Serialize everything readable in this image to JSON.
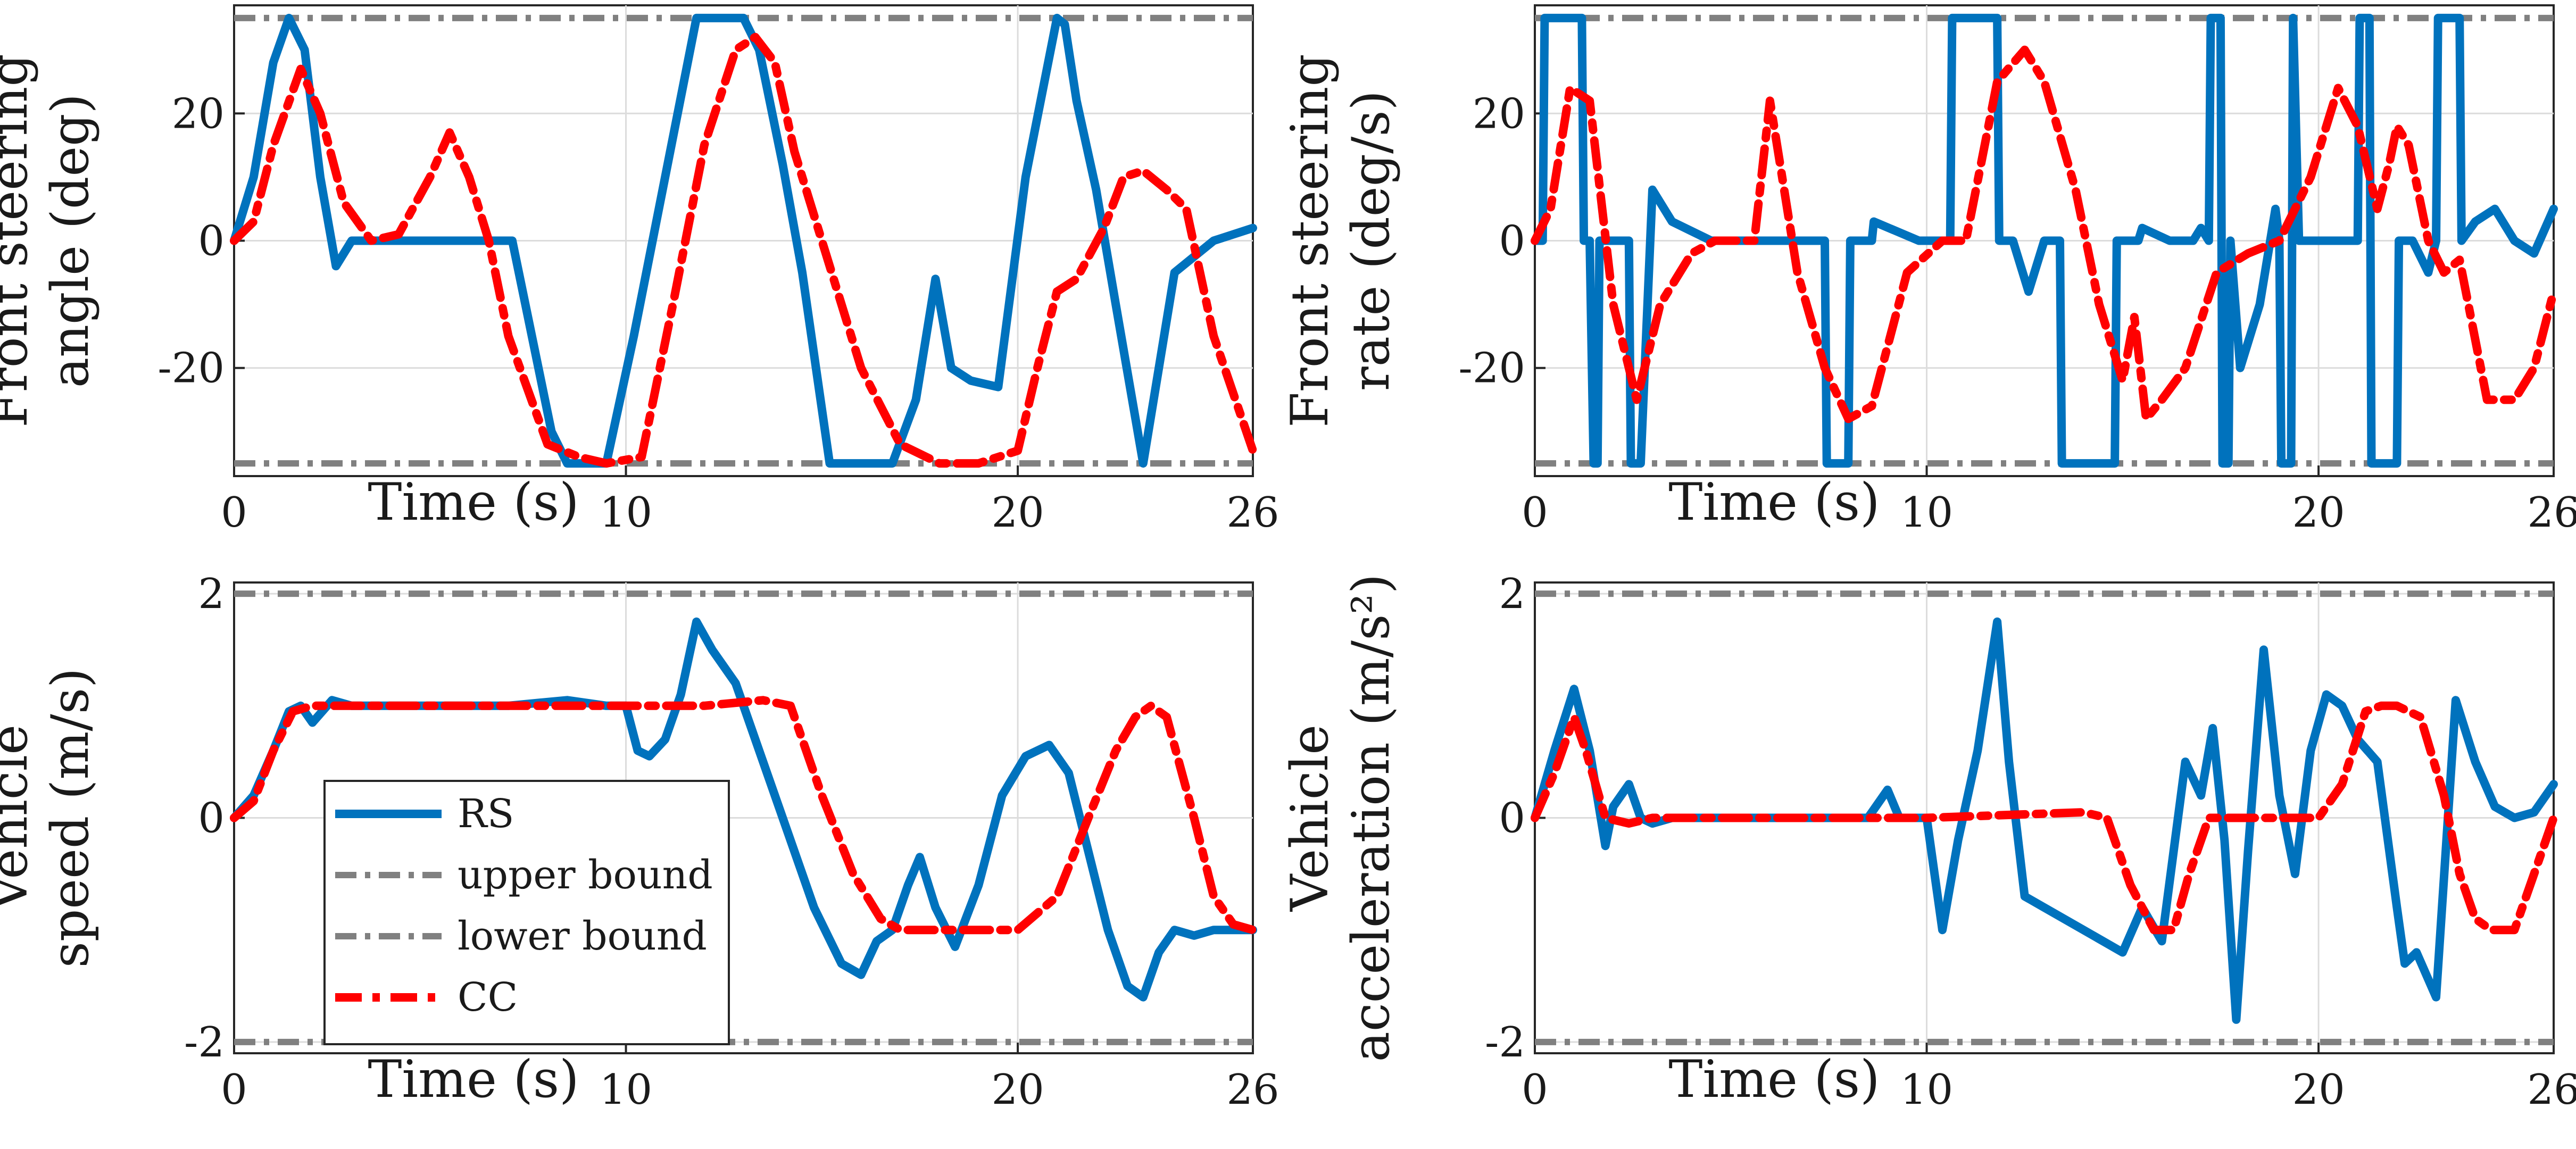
{
  "chart_data": [
    {
      "type": "line",
      "id": "steer-angle",
      "ylabel_lines": [
        "Front steering",
        "angle (deg)"
      ],
      "xlabel": "Time (s)",
      "xlim": [
        0,
        26
      ],
      "ylim": [
        -37,
        37
      ],
      "xticks": [
        0,
        10,
        20,
        26
      ],
      "yticks": [
        -20,
        0,
        20
      ],
      "yticklabels": [
        "-20",
        "0",
        "20"
      ],
      "bounds": {
        "upper": 35,
        "lower": -35
      },
      "series": [
        {
          "name": "RS",
          "x": [
            0,
            0.5,
            1.0,
            1.4,
            1.8,
            2.2,
            2.6,
            3.0,
            4,
            5,
            6,
            7.1,
            7.5,
            8.1,
            8.5,
            9.5,
            10.2,
            11.0,
            11.8,
            12.2,
            13.0,
            13.4,
            14.0,
            14.5,
            15.2,
            16.0,
            16.8,
            17.4,
            17.9,
            18.3,
            18.8,
            19.5,
            20.2,
            21.0,
            21.2,
            21.5,
            22.0,
            22.5,
            23.2,
            24.0,
            25.0,
            26
          ],
          "values": [
            0,
            10,
            28,
            35,
            30,
            10,
            -4,
            0,
            0,
            0,
            0,
            0,
            -12,
            -30,
            -35,
            -35,
            -15,
            10,
            35,
            35,
            35,
            30,
            12,
            -5,
            -35,
            -35,
            -35,
            -25,
            -6,
            -20,
            -22,
            -23,
            10,
            35,
            34,
            22,
            8,
            -10,
            -35,
            -5,
            0,
            2
          ]
        },
        {
          "name": "CC",
          "x": [
            0,
            0.5,
            1.0,
            1.7,
            2.2,
            2.8,
            3.5,
            4.2,
            5,
            5.5,
            6,
            6.5,
            7.0,
            8.0,
            8.8,
            9.5,
            10.4,
            11.2,
            12.0,
            12.8,
            13.3,
            13.8,
            14.3,
            14.7,
            15.1,
            16.0,
            17.0,
            18.0,
            19.0,
            20.0,
            20.5,
            21.0,
            21.5,
            22.2,
            22.7,
            23.2,
            23.8,
            24.3,
            25,
            26
          ],
          "values": [
            0,
            3,
            15,
            27,
            20,
            6,
            0,
            1,
            10,
            17,
            10,
            0,
            -15,
            -32,
            -34,
            -35,
            -34,
            -10,
            15,
            30,
            32,
            28,
            14,
            6,
            -2,
            -20,
            -32,
            -35,
            -35,
            -33,
            -20,
            -8,
            -6,
            2,
            10,
            11,
            8,
            5,
            -15,
            -33
          ]
        }
      ]
    },
    {
      "type": "line",
      "id": "steer-rate",
      "ylabel_lines": [
        "Front steering",
        "rate (deg/s)"
      ],
      "xlabel": "Time (s)",
      "xlim": [
        0,
        26
      ],
      "ylim": [
        -37,
        37
      ],
      "xticks": [
        0,
        10,
        20,
        26
      ],
      "yticks": [
        -20,
        0,
        20
      ],
      "yticklabels": [
        "-20",
        "0",
        "20"
      ],
      "bounds": {
        "upper": 35,
        "lower": -35
      },
      "series": [
        {
          "name": "RS",
          "x": [
            0,
            0.2,
            0.25,
            1.2,
            1.25,
            1.4,
            1.5,
            1.6,
            1.65,
            2.4,
            2.45,
            2.7,
            3.0,
            3.5,
            4.5,
            6,
            7.4,
            7.45,
            8.0,
            8.05,
            8.6,
            8.65,
            9.8,
            10.2,
            10.6,
            10.65,
            11.8,
            11.85,
            12.0,
            12.2,
            12.6,
            13.0,
            13.4,
            13.45,
            14.8,
            14.85,
            15.4,
            15.5,
            16.2,
            16.5,
            16.8,
            17.0,
            17.2,
            17.25,
            17.5,
            17.55,
            17.7,
            17.75,
            18.0,
            18.5,
            18.9,
            19.0,
            19.05,
            19.3,
            19.35,
            19.5,
            20.5,
            21.0,
            21.05,
            21.3,
            21.35,
            22.0,
            22.05,
            22.4,
            22.8,
            23.0,
            23.05,
            23.6,
            23.65,
            24.0,
            24.5,
            25.0,
            25.5,
            26
          ],
          "values": [
            0,
            0,
            35,
            35,
            0,
            0,
            -35,
            -35,
            0,
            0,
            -35,
            -35,
            8,
            3,
            0,
            0,
            0,
            -35,
            -35,
            0,
            0,
            3,
            0,
            0,
            0,
            35,
            35,
            0,
            0,
            0,
            -8,
            0,
            0,
            -35,
            -35,
            0,
            0,
            2,
            0,
            0,
            0,
            2,
            0,
            35,
            35,
            -35,
            -35,
            0,
            -20,
            -10,
            5,
            0,
            -35,
            -35,
            35,
            0,
            0,
            0,
            35,
            35,
            -35,
            -35,
            0,
            0,
            -5,
            0,
            35,
            35,
            0,
            3,
            5,
            0,
            -2,
            5
          ]
        },
        {
          "name": "CC",
          "x": [
            0,
            0.4,
            0.9,
            1.4,
            2.0,
            2.6,
            3.2,
            4.0,
            4.6,
            5.1,
            5.6,
            6.0,
            6.7,
            7.4,
            8.0,
            8.6,
            9.5,
            10.4,
            11.0,
            11.8,
            12.5,
            13.0,
            13.8,
            14.4,
            15.0,
            15.3,
            15.6,
            16.0,
            16.6,
            17.4,
            18.2,
            19.0,
            19.8,
            20.5,
            21.0,
            21.5,
            21.8,
            22.0,
            22.3,
            22.8,
            23.2,
            23.6,
            24.3,
            25.0,
            25.5,
            26
          ],
          "values": [
            0,
            5,
            24,
            22,
            -10,
            -25,
            -10,
            -2,
            0,
            0,
            0,
            22,
            -5,
            -20,
            -28,
            -26,
            -5,
            0,
            0,
            25,
            30,
            25,
            8,
            -10,
            -22,
            -12,
            -28,
            -25,
            -20,
            -5,
            -2,
            0,
            10,
            24,
            18,
            5,
            12,
            18,
            15,
            0,
            -5,
            -3,
            -25,
            -25,
            -20,
            -8
          ]
        }
      ]
    },
    {
      "type": "line",
      "id": "speed",
      "ylabel_lines": [
        "Vehicle",
        "speed (m/s)"
      ],
      "xlabel": "Time (s)",
      "xlim": [
        0,
        26
      ],
      "ylim": [
        -2.1,
        2.1
      ],
      "xticks": [
        0,
        10,
        20,
        26
      ],
      "yticks": [
        -2,
        0,
        2
      ],
      "yticklabels": [
        "-2",
        "0",
        "2"
      ],
      "bounds": {
        "upper": 2,
        "lower": -2
      },
      "series": [
        {
          "name": "RS",
          "x": [
            0,
            0.5,
            1.0,
            1.4,
            1.7,
            2.0,
            2.5,
            3.0,
            5.0,
            7.0,
            8.5,
            9.5,
            10.0,
            10.3,
            10.6,
            11.0,
            11.4,
            11.8,
            12.2,
            12.8,
            13.4,
            14.0,
            14.8,
            15.5,
            16.0,
            16.4,
            16.8,
            17.2,
            17.5,
            17.9,
            18.4,
            19.0,
            19.6,
            20.2,
            20.8,
            21.3,
            21.8,
            22.3,
            22.8,
            23.2,
            23.6,
            24.0,
            24.5,
            25,
            26
          ],
          "values": [
            0,
            0.2,
            0.6,
            0.95,
            1.0,
            0.85,
            1.05,
            1.0,
            1.0,
            1.0,
            1.05,
            1.0,
            1.0,
            0.6,
            0.55,
            0.7,
            1.1,
            1.75,
            1.5,
            1.2,
            0.6,
            0.0,
            -0.8,
            -1.3,
            -1.4,
            -1.1,
            -1.0,
            -0.6,
            -0.35,
            -0.8,
            -1.15,
            -0.6,
            0.2,
            0.55,
            0.65,
            0.4,
            -0.3,
            -1.0,
            -1.5,
            -1.6,
            -1.2,
            -1.0,
            -1.05,
            -1.0,
            -1.0
          ]
        },
        {
          "name": "CC",
          "x": [
            0,
            0.5,
            1.0,
            1.5,
            2.0,
            4,
            6,
            8,
            10,
            12,
            13.5,
            14.2,
            15.0,
            15.8,
            16.5,
            17.0,
            18.0,
            19.0,
            20.0,
            21.0,
            21.8,
            22.5,
            23.0,
            23.4,
            23.8,
            24.5,
            25.0,
            25.5,
            26
          ],
          "values": [
            0,
            0.15,
            0.6,
            0.95,
            1.0,
            1.0,
            1.0,
            1.0,
            1.0,
            1.0,
            1.05,
            1.0,
            0.2,
            -0.5,
            -0.9,
            -1.0,
            -1.0,
            -1.0,
            -1.0,
            -0.7,
            0.0,
            0.6,
            0.9,
            1.0,
            0.9,
            0.0,
            -0.7,
            -0.95,
            -1.0
          ]
        }
      ]
    },
    {
      "type": "line",
      "id": "acceleration",
      "ylabel_lines": [
        "Vehicle",
        "acceleration (m/s²)"
      ],
      "xlabel": "Time (s)",
      "xlim": [
        0,
        26
      ],
      "ylim": [
        -2.1,
        2.1
      ],
      "xticks": [
        0,
        10,
        20,
        26
      ],
      "yticks": [
        -2,
        0,
        2
      ],
      "yticklabels": [
        "-2",
        "0",
        "2"
      ],
      "bounds": {
        "upper": 2,
        "lower": -2
      },
      "series": [
        {
          "name": "RS",
          "x": [
            0,
            0.5,
            1.0,
            1.4,
            1.8,
            2.0,
            2.4,
            2.7,
            3.0,
            3.5,
            5,
            7,
            8.5,
            9.0,
            9.3,
            10.0,
            10.4,
            10.8,
            11.3,
            11.8,
            12.1,
            12.5,
            13.0,
            14.0,
            15.0,
            15.5,
            16.0,
            16.3,
            16.6,
            17.0,
            17.3,
            17.6,
            17.9,
            18.2,
            18.6,
            19.0,
            19.4,
            19.8,
            20.2,
            20.6,
            21.0,
            21.5,
            22.0,
            22.2,
            22.5,
            23.0,
            23.5,
            24.0,
            24.5,
            25.0,
            25.5,
            26
          ],
          "values": [
            0,
            0.6,
            1.15,
            0.6,
            -0.25,
            0.1,
            0.3,
            0.0,
            -0.05,
            0.0,
            0.0,
            0.0,
            0.0,
            0.25,
            0.0,
            0.0,
            -1.0,
            -0.2,
            0.6,
            1.75,
            0.5,
            -0.7,
            -0.8,
            -1.0,
            -1.2,
            -0.8,
            -1.1,
            -0.3,
            0.5,
            0.2,
            0.8,
            -0.2,
            -1.8,
            -0.3,
            1.5,
            0.2,
            -0.5,
            0.6,
            1.1,
            1.0,
            0.7,
            0.5,
            -0.8,
            -1.3,
            -1.2,
            -1.6,
            1.05,
            0.5,
            0.1,
            0.0,
            0.05,
            0.3
          ]
        },
        {
          "name": "CC",
          "x": [
            0,
            0.5,
            1.0,
            1.3,
            1.8,
            2.4,
            3,
            6,
            10,
            14,
            14.6,
            15.2,
            15.8,
            16.3,
            16.7,
            17.2,
            18,
            19,
            20,
            20.6,
            21.2,
            21.6,
            22.0,
            22.6,
            23.2,
            23.6,
            24.0,
            24.4,
            25.0,
            25.5,
            26
          ],
          "values": [
            0,
            0.4,
            0.9,
            0.6,
            0.0,
            -0.05,
            0.0,
            0.0,
            0.0,
            0.05,
            0.0,
            -0.6,
            -1.0,
            -1.0,
            -0.5,
            0.0,
            0.0,
            0.0,
            0.0,
            0.3,
            0.95,
            1.0,
            1.0,
            0.9,
            0.2,
            -0.5,
            -0.9,
            -1.0,
            -1.0,
            -0.5,
            0.0
          ]
        }
      ]
    }
  ],
  "legend": {
    "items": [
      {
        "label": "RS",
        "style": "solid",
        "color": "#0072BD"
      },
      {
        "label": "upper bound",
        "style": "dashdot",
        "color": "#808080"
      },
      {
        "label": "lower bound",
        "style": "dashdot",
        "color": "#808080"
      },
      {
        "label": "CC",
        "style": "dashdot",
        "color": "#FF0000"
      }
    ]
  },
  "colors": {
    "rs": "#0072BD",
    "cc": "#FF0000",
    "bound": "#808080"
  }
}
